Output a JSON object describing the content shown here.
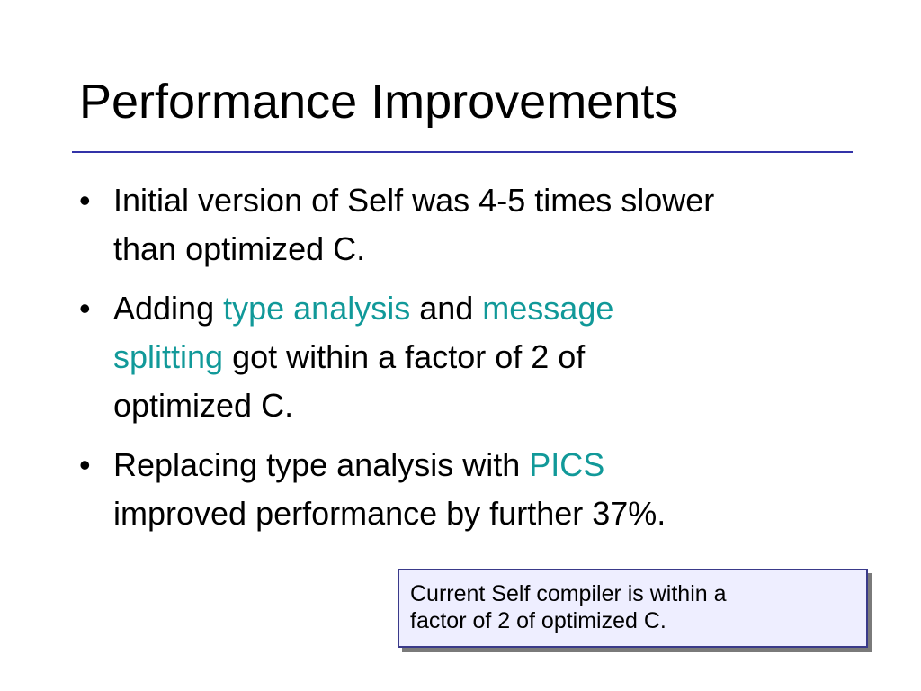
{
  "slide": {
    "title": "Performance Improvements",
    "bullet_char": "•",
    "bullets": [
      {
        "text_1": "Initial version of Self was 4-5 times slower",
        "text_2": "than optimized C."
      },
      {
        "text_1": "Adding ",
        "highlight_1": "type analysis",
        "text_2": " and ",
        "highlight_2": "message",
        "highlight_3": "splitting",
        "text_3": " got within a factor of 2 of",
        "text_4": "optimized C."
      },
      {
        "text_1": "Replacing type analysis with ",
        "highlight_1": "PICS",
        "text_2": "improved performance by further 37%."
      }
    ],
    "callout": {
      "line_1": "Current Self compiler is within a",
      "line_2": "factor of 2 of optimized C."
    },
    "colors": {
      "highlight": "#119999",
      "title_rule": "#3333a8",
      "callout_bg": "#eeeeff",
      "callout_border": "#3a3a8a"
    }
  }
}
